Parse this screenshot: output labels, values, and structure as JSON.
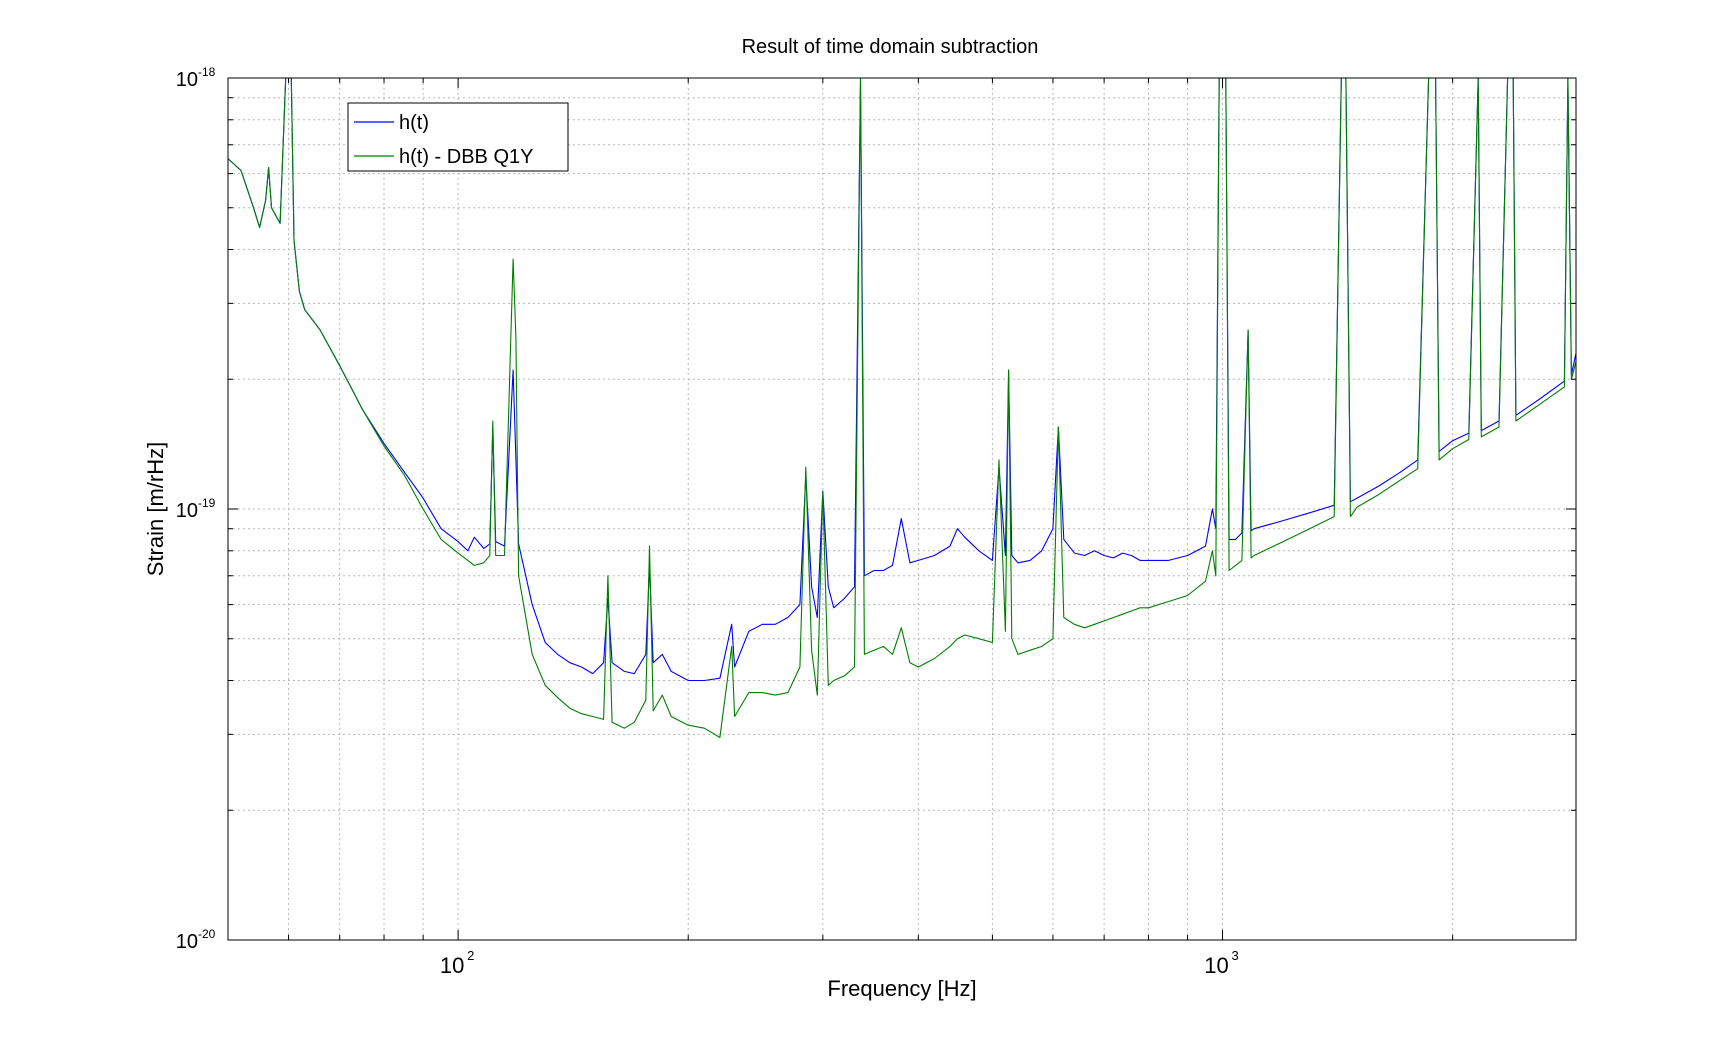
{
  "chart_data": {
    "type": "line",
    "title": "Result of time domain subtraction",
    "xlabel": "Frequency [Hz]",
    "ylabel": "Strain [m/rHz]",
    "xscale": "log",
    "yscale": "log",
    "xlim": [
      50,
      2900
    ],
    "ylim": [
      1e-20,
      1e-18
    ],
    "grid": true,
    "legend_position": "top-left",
    "x_ticks": [
      {
        "value": 100,
        "base": "10",
        "exp": "2"
      },
      {
        "value": 1000,
        "base": "10",
        "exp": "3"
      }
    ],
    "y_ticks": [
      {
        "value": 1e-20,
        "base": "10",
        "exp": "-20"
      },
      {
        "value": 1e-19,
        "base": "10",
        "exp": "-19"
      },
      {
        "value": 1e-18,
        "base": "10",
        "exp": "-18"
      }
    ],
    "series": [
      {
        "name": "h(t)",
        "color": "#0000ff",
        "points": [
          [
            50,
            6.5e-19
          ],
          [
            52,
            6.1e-19
          ],
          [
            54,
            5e-19
          ],
          [
            55,
            4.5e-19
          ],
          [
            56,
            5.2e-19
          ],
          [
            56.5,
            6.2e-19
          ],
          [
            57,
            5e-19
          ],
          [
            58.5,
            4.6e-19
          ],
          [
            59.5,
            1e-18
          ],
          [
            60,
            1e-18
          ],
          [
            60.5,
            1e-18
          ],
          [
            61,
            4.2e-19
          ],
          [
            62,
            3.2e-19
          ],
          [
            63,
            2.9e-19
          ],
          [
            66,
            2.6e-19
          ],
          [
            70,
            2.15e-19
          ],
          [
            75,
            1.7e-19
          ],
          [
            80,
            1.42e-19
          ],
          [
            85,
            1.22e-19
          ],
          [
            90,
            1.06e-19
          ],
          [
            95,
            9e-20
          ],
          [
            100,
            8.4e-20
          ],
          [
            103,
            8e-20
          ],
          [
            105,
            8.6e-20
          ],
          [
            108,
            8.1e-20
          ],
          [
            110,
            8.3e-20
          ],
          [
            111,
            1.55e-19
          ],
          [
            112,
            8.4e-20
          ],
          [
            115,
            8.2e-20
          ],
          [
            118,
            2.1e-19
          ],
          [
            120,
            8.3e-20
          ],
          [
            125,
            6e-20
          ],
          [
            130,
            4.9e-20
          ],
          [
            135,
            4.6e-20
          ],
          [
            140,
            4.4e-20
          ],
          [
            145,
            4.3e-20
          ],
          [
            150,
            4.15e-20
          ],
          [
            155,
            4.4e-20
          ],
          [
            157,
            6.2e-20
          ],
          [
            159,
            4.4e-20
          ],
          [
            165,
            4.2e-20
          ],
          [
            170,
            4.15e-20
          ],
          [
            176,
            4.6e-20
          ],
          [
            178,
            7.4e-20
          ],
          [
            180,
            4.4e-20
          ],
          [
            185,
            4.6e-20
          ],
          [
            190,
            4.2e-20
          ],
          [
            200,
            4e-20
          ],
          [
            210,
            4e-20
          ],
          [
            220,
            4.05e-20
          ],
          [
            228,
            5.4e-20
          ],
          [
            230,
            4.3e-20
          ],
          [
            240,
            5.2e-20
          ],
          [
            250,
            5.4e-20
          ],
          [
            260,
            5.4e-20
          ],
          [
            270,
            5.6e-20
          ],
          [
            280,
            6e-20
          ],
          [
            285,
            1.2e-19
          ],
          [
            290,
            6.6e-20
          ],
          [
            295,
            5.6e-20
          ],
          [
            300,
            1.1e-19
          ],
          [
            305,
            6.6e-20
          ],
          [
            310,
            5.9e-20
          ],
          [
            320,
            6.2e-20
          ],
          [
            330,
            6.6e-20
          ],
          [
            336,
            1e-18
          ],
          [
            340,
            7e-20
          ],
          [
            350,
            7.2e-20
          ],
          [
            360,
            7.2e-20
          ],
          [
            370,
            7.4e-20
          ],
          [
            380,
            9.5e-20
          ],
          [
            390,
            7.5e-20
          ],
          [
            400,
            7.6e-20
          ],
          [
            420,
            7.8e-20
          ],
          [
            440,
            8.2e-20
          ],
          [
            450,
            9e-20
          ],
          [
            460,
            8.6e-20
          ],
          [
            480,
            8e-20
          ],
          [
            500,
            7.6e-20
          ],
          [
            510,
            1.25e-19
          ],
          [
            520,
            7.8e-20
          ],
          [
            525,
            2.1e-19
          ],
          [
            530,
            7.8e-20
          ],
          [
            540,
            7.5e-20
          ],
          [
            560,
            7.6e-20
          ],
          [
            580,
            8e-20
          ],
          [
            600,
            9e-20
          ],
          [
            610,
            1.55e-19
          ],
          [
            620,
            8.5e-20
          ],
          [
            640,
            7.9e-20
          ],
          [
            660,
            7.8e-20
          ],
          [
            680,
            8e-20
          ],
          [
            700,
            7.8e-20
          ],
          [
            720,
            7.7e-20
          ],
          [
            740,
            7.9e-20
          ],
          [
            760,
            7.8e-20
          ],
          [
            780,
            7.6e-20
          ],
          [
            800,
            7.6e-20
          ],
          [
            850,
            7.6e-20
          ],
          [
            900,
            7.8e-20
          ],
          [
            950,
            8.2e-20
          ],
          [
            970,
            1e-19
          ],
          [
            980,
            9e-20
          ],
          [
            990,
            1e-18
          ],
          [
            1000,
            1e-18
          ],
          [
            1010,
            1e-18
          ],
          [
            1020,
            8.5e-20
          ],
          [
            1040,
            8.5e-20
          ],
          [
            1060,
            8.8e-20
          ],
          [
            1080,
            2.6e-19
          ],
          [
            1090,
            8.9e-20
          ],
          [
            1100,
            9e-20
          ],
          [
            1200,
            9.4e-20
          ],
          [
            1300,
            9.8e-20
          ],
          [
            1400,
            1.02e-19
          ],
          [
            1430,
            1e-18
          ],
          [
            1450,
            1e-18
          ],
          [
            1470,
            1.04e-19
          ],
          [
            1500,
            1.06e-19
          ],
          [
            1600,
            1.13e-19
          ],
          [
            1700,
            1.21e-19
          ],
          [
            1800,
            1.3e-19
          ],
          [
            1860,
            1e-18
          ],
          [
            1900,
            1e-18
          ],
          [
            1920,
            1.36e-19
          ],
          [
            2000,
            1.44e-19
          ],
          [
            2100,
            1.5e-19
          ],
          [
            2160,
            1e-18
          ],
          [
            2180,
            1.52e-19
          ],
          [
            2300,
            1.6e-19
          ],
          [
            2360,
            1e-18
          ],
          [
            2400,
            1e-18
          ],
          [
            2420,
            1.65e-19
          ],
          [
            2600,
            1.8e-19
          ],
          [
            2800,
            1.98e-19
          ],
          [
            2830,
            1e-18
          ],
          [
            2860,
            2.05e-19
          ],
          [
            2900,
            2.3e-19
          ]
        ]
      },
      {
        "name": "h(t) - DBB Q1Y",
        "color": "#007f00",
        "points": [
          [
            50,
            6.5e-19
          ],
          [
            52,
            6.1e-19
          ],
          [
            54,
            5e-19
          ],
          [
            55,
            4.5e-19
          ],
          [
            56,
            5.2e-19
          ],
          [
            56.5,
            6.2e-19
          ],
          [
            57,
            5e-19
          ],
          [
            58.5,
            4.6e-19
          ],
          [
            59.5,
            1e-18
          ],
          [
            60,
            1e-18
          ],
          [
            60.5,
            1e-18
          ],
          [
            61,
            4.2e-19
          ],
          [
            62,
            3.2e-19
          ],
          [
            63,
            2.9e-19
          ],
          [
            66,
            2.6e-19
          ],
          [
            70,
            2.15e-19
          ],
          [
            75,
            1.7e-19
          ],
          [
            80,
            1.4e-19
          ],
          [
            85,
            1.2e-19
          ],
          [
            90,
            1e-19
          ],
          [
            95,
            8.5e-20
          ],
          [
            100,
            7.9e-20
          ],
          [
            103,
            7.6e-20
          ],
          [
            105,
            7.4e-20
          ],
          [
            108,
            7.5e-20
          ],
          [
            110,
            7.8e-20
          ],
          [
            111,
            1.6e-19
          ],
          [
            112,
            7.8e-20
          ],
          [
            115,
            7.8e-20
          ],
          [
            118,
            3.8e-19
          ],
          [
            119,
            2.5e-19
          ],
          [
            120,
            7e-20
          ],
          [
            125,
            4.6e-20
          ],
          [
            130,
            3.9e-20
          ],
          [
            135,
            3.65e-20
          ],
          [
            140,
            3.45e-20
          ],
          [
            145,
            3.35e-20
          ],
          [
            150,
            3.3e-20
          ],
          [
            155,
            3.25e-20
          ],
          [
            157,
            7e-20
          ],
          [
            159,
            3.2e-20
          ],
          [
            165,
            3.1e-20
          ],
          [
            170,
            3.2e-20
          ],
          [
            176,
            3.6e-20
          ],
          [
            178,
            8.2e-20
          ],
          [
            180,
            3.4e-20
          ],
          [
            185,
            3.7e-20
          ],
          [
            190,
            3.3e-20
          ],
          [
            200,
            3.15e-20
          ],
          [
            210,
            3.1e-20
          ],
          [
            220,
            2.95e-20
          ],
          [
            228,
            4.8e-20
          ],
          [
            230,
            3.3e-20
          ],
          [
            240,
            3.75e-20
          ],
          [
            250,
            3.75e-20
          ],
          [
            260,
            3.7e-20
          ],
          [
            270,
            3.75e-20
          ],
          [
            280,
            4.3e-20
          ],
          [
            285,
            1.25e-19
          ],
          [
            290,
            4.7e-20
          ],
          [
            295,
            3.7e-20
          ],
          [
            300,
            1.1e-19
          ],
          [
            305,
            3.9e-20
          ],
          [
            310,
            4e-20
          ],
          [
            320,
            4.1e-20
          ],
          [
            330,
            4.3e-20
          ],
          [
            336,
            1e-18
          ],
          [
            340,
            4.6e-20
          ],
          [
            350,
            4.7e-20
          ],
          [
            360,
            4.8e-20
          ],
          [
            370,
            4.6e-20
          ],
          [
            380,
            5.3e-20
          ],
          [
            390,
            4.4e-20
          ],
          [
            400,
            4.3e-20
          ],
          [
            420,
            4.5e-20
          ],
          [
            440,
            4.8e-20
          ],
          [
            450,
            5e-20
          ],
          [
            460,
            5.1e-20
          ],
          [
            480,
            5e-20
          ],
          [
            500,
            4.9e-20
          ],
          [
            510,
            1.3e-19
          ],
          [
            520,
            5.2e-20
          ],
          [
            525,
            2.1e-19
          ],
          [
            530,
            5e-20
          ],
          [
            540,
            4.6e-20
          ],
          [
            560,
            4.7e-20
          ],
          [
            580,
            4.8e-20
          ],
          [
            600,
            5e-20
          ],
          [
            610,
            1.55e-19
          ],
          [
            620,
            5.6e-20
          ],
          [
            640,
            5.4e-20
          ],
          [
            660,
            5.3e-20
          ],
          [
            680,
            5.4e-20
          ],
          [
            700,
            5.5e-20
          ],
          [
            720,
            5.6e-20
          ],
          [
            740,
            5.7e-20
          ],
          [
            760,
            5.8e-20
          ],
          [
            780,
            5.9e-20
          ],
          [
            800,
            5.9e-20
          ],
          [
            850,
            6.1e-20
          ],
          [
            900,
            6.3e-20
          ],
          [
            950,
            6.8e-20
          ],
          [
            970,
            8e-20
          ],
          [
            980,
            7e-20
          ],
          [
            990,
            1e-18
          ],
          [
            1000,
            1e-18
          ],
          [
            1010,
            1e-18
          ],
          [
            1020,
            7.2e-20
          ],
          [
            1040,
            7.4e-20
          ],
          [
            1060,
            7.6e-20
          ],
          [
            1080,
            2.6e-19
          ],
          [
            1090,
            7.7e-20
          ],
          [
            1100,
            7.8e-20
          ],
          [
            1200,
            8.4e-20
          ],
          [
            1300,
            9e-20
          ],
          [
            1400,
            9.6e-20
          ],
          [
            1430,
            1e-18
          ],
          [
            1450,
            1e-18
          ],
          [
            1470,
            9.6e-20
          ],
          [
            1500,
            1.01e-19
          ],
          [
            1600,
            1.08e-19
          ],
          [
            1700,
            1.16e-19
          ],
          [
            1800,
            1.24e-19
          ],
          [
            1860,
            1e-18
          ],
          [
            1900,
            1e-18
          ],
          [
            1920,
            1.3e-19
          ],
          [
            2000,
            1.38e-19
          ],
          [
            2100,
            1.45e-19
          ],
          [
            2160,
            1e-18
          ],
          [
            2180,
            1.47e-19
          ],
          [
            2300,
            1.55e-19
          ],
          [
            2360,
            1e-18
          ],
          [
            2400,
            1e-18
          ],
          [
            2420,
            1.6e-19
          ],
          [
            2600,
            1.75e-19
          ],
          [
            2800,
            1.92e-19
          ],
          [
            2830,
            1e-18
          ],
          [
            2860,
            2e-19
          ],
          [
            2900,
            2.2e-19
          ]
        ]
      }
    ]
  }
}
